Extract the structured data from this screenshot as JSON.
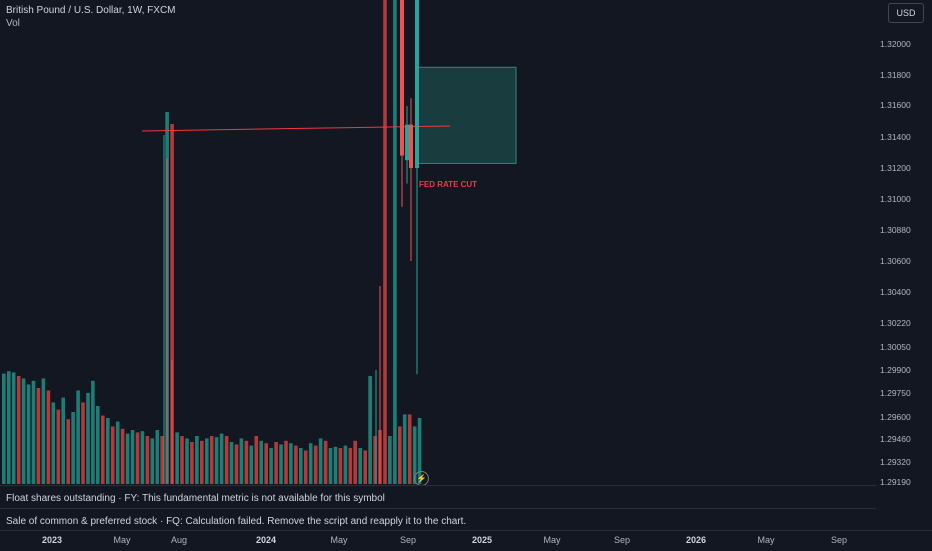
{
  "header": {
    "symbol_line": "British Pound / U.S. Dollar, 1W, FXCM",
    "volume_label": "Vol",
    "currency_button": "USD"
  },
  "annotation": {
    "fed_label": "FED RATE CUT"
  },
  "status": {
    "row1": "Float shares outstanding · FY: This fundamental metric is not available for this symbol",
    "row2": "Sale of common & preferred stock · FQ: Calculation failed. Remove the script and reapply it to the chart."
  },
  "icons": {
    "alert": "lightning-icon"
  },
  "colors": {
    "up": "#26a69a",
    "down": "#ef5350",
    "zone": "#1f5d55",
    "line": "#f23645",
    "background": "#131722"
  },
  "chart_data": {
    "type": "candlestick",
    "title": "British Pound / U.S. Dollar, 1W, FXCM",
    "y_ticks": [
      "1.32000",
      "1.31800",
      "1.31600",
      "1.31400",
      "1.31200",
      "1.31000",
      "1.30880",
      "1.30600",
      "1.30400",
      "1.30220",
      "1.30050",
      "1.29900",
      "1.29750",
      "1.29600",
      "1.29460",
      "1.29320",
      "1.29190"
    ],
    "x_ticks": [
      {
        "label": "2023",
        "major": true
      },
      {
        "label": "May",
        "major": false
      },
      {
        "label": "Aug",
        "major": false
      },
      {
        "label": "2024",
        "major": true
      },
      {
        "label": "May",
        "major": false
      },
      {
        "label": "Sep",
        "major": false
      },
      {
        "label": "2025",
        "major": true
      },
      {
        "label": "May",
        "major": false
      },
      {
        "label": "Sep",
        "major": false
      },
      {
        "label": "2026",
        "major": true
      },
      {
        "label": "May",
        "major": false
      },
      {
        "label": "Sep",
        "major": false
      }
    ],
    "volume_bars": [
      {
        "v": 0.92,
        "up": true
      },
      {
        "v": 0.94,
        "up": true
      },
      {
        "v": 0.93,
        "up": true
      },
      {
        "v": 0.9,
        "up": false
      },
      {
        "v": 0.88,
        "up": true
      },
      {
        "v": 0.83,
        "up": true
      },
      {
        "v": 0.86,
        "up": true
      },
      {
        "v": 0.8,
        "up": false
      },
      {
        "v": 0.88,
        "up": true
      },
      {
        "v": 0.78,
        "up": false
      },
      {
        "v": 0.68,
        "up": true
      },
      {
        "v": 0.62,
        "up": false
      },
      {
        "v": 0.72,
        "up": true
      },
      {
        "v": 0.54,
        "up": false
      },
      {
        "v": 0.6,
        "up": true
      },
      {
        "v": 0.78,
        "up": true
      },
      {
        "v": 0.68,
        "up": false
      },
      {
        "v": 0.76,
        "up": true
      },
      {
        "v": 0.86,
        "up": true
      },
      {
        "v": 0.65,
        "up": true
      },
      {
        "v": 0.57,
        "up": false
      },
      {
        "v": 0.55,
        "up": true
      },
      {
        "v": 0.48,
        "up": false
      },
      {
        "v": 0.52,
        "up": true
      },
      {
        "v": 0.46,
        "up": false
      },
      {
        "v": 0.42,
        "up": true
      },
      {
        "v": 0.45,
        "up": true
      },
      {
        "v": 0.43,
        "up": false
      },
      {
        "v": 0.44,
        "up": true
      },
      {
        "v": 0.4,
        "up": false
      },
      {
        "v": 0.38,
        "up": true
      },
      {
        "v": 0.45,
        "up": true
      },
      {
        "v": 0.4,
        "up": false
      },
      {
        "v": 3.1,
        "up": true
      },
      {
        "v": 3.0,
        "up": false
      },
      {
        "v": 0.43,
        "up": true
      },
      {
        "v": 0.4,
        "up": false
      },
      {
        "v": 0.38,
        "up": true
      },
      {
        "v": 0.35,
        "up": false
      },
      {
        "v": 0.4,
        "up": true
      },
      {
        "v": 0.36,
        "up": false
      },
      {
        "v": 0.38,
        "up": true
      },
      {
        "v": 0.4,
        "up": false
      },
      {
        "v": 0.39,
        "up": true
      },
      {
        "v": 0.42,
        "up": true
      },
      {
        "v": 0.4,
        "up": false
      },
      {
        "v": 0.35,
        "up": true
      },
      {
        "v": 0.33,
        "up": false
      },
      {
        "v": 0.38,
        "up": true
      },
      {
        "v": 0.36,
        "up": false
      },
      {
        "v": 0.32,
        "up": true
      },
      {
        "v": 0.4,
        "up": false
      },
      {
        "v": 0.36,
        "up": true
      },
      {
        "v": 0.34,
        "up": false
      },
      {
        "v": 0.3,
        "up": true
      },
      {
        "v": 0.35,
        "up": false
      },
      {
        "v": 0.33,
        "up": true
      },
      {
        "v": 0.36,
        "up": false
      },
      {
        "v": 0.34,
        "up": true
      },
      {
        "v": 0.32,
        "up": false
      },
      {
        "v": 0.3,
        "up": true
      },
      {
        "v": 0.28,
        "up": false
      },
      {
        "v": 0.34,
        "up": true
      },
      {
        "v": 0.32,
        "up": false
      },
      {
        "v": 0.38,
        "up": true
      },
      {
        "v": 0.36,
        "up": false
      },
      {
        "v": 0.3,
        "up": true
      },
      {
        "v": 0.31,
        "up": true
      },
      {
        "v": 0.3,
        "up": false
      },
      {
        "v": 0.32,
        "up": true
      },
      {
        "v": 0.3,
        "up": false
      },
      {
        "v": 0.36,
        "up": false
      },
      {
        "v": 0.3,
        "up": true
      },
      {
        "v": 0.28,
        "up": false
      },
      {
        "v": 0.9,
        "up": true
      },
      {
        "v": 0.4,
        "up": false
      },
      {
        "v": 0.45,
        "up": false
      },
      {
        "v": 5.0,
        "up": false
      },
      {
        "v": 0.4,
        "up": true
      },
      {
        "v": 5.0,
        "up": true
      },
      {
        "v": 0.48,
        "up": false
      },
      {
        "v": 0.58,
        "up": true
      },
      {
        "v": 0.58,
        "up": false
      },
      {
        "v": 0.48,
        "up": true
      },
      {
        "v": 0.55,
        "up": true
      }
    ],
    "candles": [
      {
        "open": 1.3235,
        "close": 1.3128,
        "high": 1.327,
        "low": 1.3095,
        "up": false
      },
      {
        "open": 1.3125,
        "close": 1.3148,
        "high": 1.316,
        "low": 1.311,
        "up": true
      },
      {
        "open": 1.3148,
        "close": 1.312,
        "high": 1.3165,
        "low": 1.306,
        "up": false
      },
      {
        "open": 1.312,
        "close": 1.33,
        "high": 1.331,
        "low": 1.2987,
        "up": true
      }
    ],
    "horizontal_line": {
      "y": 1.3148
    },
    "zone": {
      "top": 1.3185,
      "bottom": 1.3123
    },
    "label": "FED RATE CUT"
  }
}
